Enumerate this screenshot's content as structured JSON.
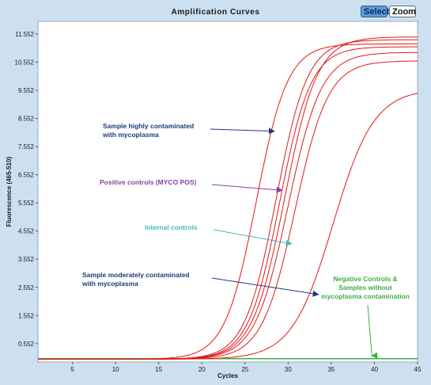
{
  "window": {
    "title": "Amplification Curves",
    "select_label": "Select",
    "zoom_label": "Zoom"
  },
  "chart_data": {
    "type": "line",
    "xlabel": "Cycles",
    "ylabel": "Fluorescence (465-510)",
    "xlim": [
      1,
      45
    ],
    "ylim": [
      -0.1,
      12.0
    ],
    "xticks": [
      5,
      10,
      15,
      20,
      25,
      30,
      35,
      40,
      45
    ],
    "yticks": [
      0.552,
      1.552,
      2.552,
      3.552,
      4.552,
      5.552,
      6.552,
      7.552,
      8.552,
      9.552,
      10.552,
      11.552
    ],
    "ytick_labels": [
      "0.552",
      "1.552",
      "2.552",
      "3.552",
      "4.552",
      "5.552",
      "6.552",
      "7.552",
      "8.552",
      "9.552",
      "10.552",
      "11.552"
    ],
    "grid": false,
    "colors": {
      "sample_curves": "#e01818",
      "negative": "#3cb043",
      "highly": "#1f3b7a",
      "positive": "#8a3f9e",
      "internal": "#42b8c0",
      "moderate": "#1f3b7a"
    },
    "series": [
      {
        "midpoint": 26.3,
        "slope": 0.55,
        "plateau": 11.2
      },
      {
        "midpoint": 28.6,
        "slope": 0.55,
        "plateau": 11.35
      },
      {
        "midpoint": 29.0,
        "slope": 0.55,
        "plateau": 11.1
      },
      {
        "midpoint": 29.6,
        "slope": 0.53,
        "plateau": 11.45
      },
      {
        "midpoint": 30.0,
        "slope": 0.52,
        "plateau": 10.9
      },
      {
        "midpoint": 30.8,
        "slope": 0.52,
        "plateau": 10.6
      },
      {
        "midpoint": 35.2,
        "slope": 0.42,
        "plateau": 9.6
      }
    ],
    "negative_series": {
      "value": 0.02
    },
    "annotations": [
      {
        "key": "highly",
        "lines": [
          "Sample highly contaminated",
          "with mycoplasma"
        ],
        "arrow_to": {
          "x": 28.4,
          "y": 8.1
        }
      },
      {
        "key": "positive",
        "lines": [
          "Positive controls (MYCO POS)"
        ],
        "arrow_to": {
          "x": 29.3,
          "y": 6.0
        }
      },
      {
        "key": "internal",
        "lines": [
          "Internal controls"
        ],
        "arrow_to": {
          "x": 30.4,
          "y": 4.1
        }
      },
      {
        "key": "moderate",
        "lines": [
          "Sample moderately contaminated",
          "with mycoplasma"
        ],
        "arrow_to": {
          "x": 33.5,
          "y": 2.3
        }
      },
      {
        "key": "negative",
        "lines": [
          "Negative Controls &",
          "Samples without",
          "mycoplasma contamination"
        ],
        "arrow_to": {
          "x": 39.7,
          "y": 0.12
        }
      }
    ]
  }
}
